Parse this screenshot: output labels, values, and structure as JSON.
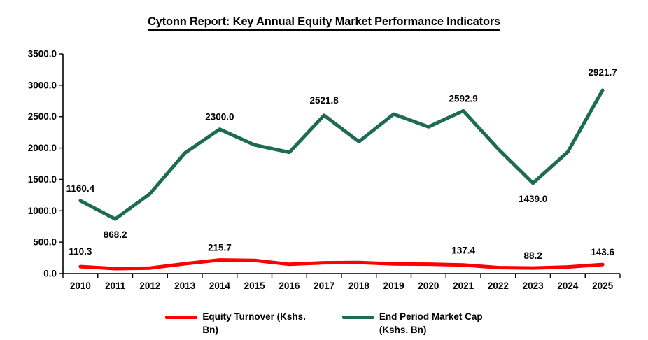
{
  "chart_data": {
    "type": "line",
    "title": "Cytonn Report: Key Annual Equity Market Performance  Indicators",
    "categories": [
      "2010",
      "2011",
      "2012",
      "2013",
      "2014",
      "2015",
      "2016",
      "2017",
      "2018",
      "2019",
      "2020",
      "2021",
      "2022",
      "2023",
      "2024",
      "2025"
    ],
    "series": [
      {
        "name": "Equity Turnover (Kshs. Bn)",
        "color": "#FF0000",
        "values": [
          110.3,
          78.1,
          86.8,
          155.8,
          215.7,
          209.4,
          147.2,
          171.6,
          175.7,
          153.9,
          148.9,
          137.4,
          94.2,
          88.2,
          105.0,
          143.6
        ]
      },
      {
        "name": "End Period Market Cap (Kshs. Bn)",
        "color": "#1C6B52",
        "values": [
          1160.4,
          868.2,
          1272.0,
          1920.7,
          2300.0,
          2049.5,
          1931.6,
          2521.8,
          2102.0,
          2540.0,
          2337.0,
          2592.9,
          1986.0,
          1439.0,
          1939.7,
          2921.7
        ]
      }
    ],
    "ylim": [
      0,
      3500
    ],
    "y_tick_step": 500,
    "y_tick_labels": [
      "0.0",
      "500.0",
      "1000.0",
      "1500.0",
      "2000.0",
      "2500.0",
      "3000.0",
      "3500.0"
    ],
    "xlabel": "",
    "ylabel": "",
    "grid": "off",
    "legend_position": "bottom",
    "point_labels": [
      {
        "series": 1,
        "category": "2010",
        "text": "1160.4",
        "placement": "above"
      },
      {
        "series": 1,
        "category": "2011",
        "text": "868.2",
        "placement": "below"
      },
      {
        "series": 1,
        "category": "2014",
        "text": "2300.0",
        "placement": "above"
      },
      {
        "series": 1,
        "category": "2017",
        "text": "2521.8",
        "placement": "above",
        "dy": -17
      },
      {
        "series": 1,
        "category": "2021",
        "text": "2592.9",
        "placement": "above"
      },
      {
        "series": 1,
        "category": "2023",
        "text": "1439.0",
        "placement": "below"
      },
      {
        "series": 1,
        "category": "2025",
        "text": "2921.7",
        "placement": "above",
        "dy": -21
      },
      {
        "series": 0,
        "category": "2010",
        "text": "110.3",
        "placement": "above",
        "dy": -17
      },
      {
        "series": 0,
        "category": "2014",
        "text": "215.7",
        "placement": "above"
      },
      {
        "series": 0,
        "category": "2021",
        "text": "137.4",
        "placement": "above",
        "dy": -16
      },
      {
        "series": 0,
        "category": "2023",
        "text": "88.2",
        "placement": "above"
      },
      {
        "series": 0,
        "category": "2025",
        "text": "143.6",
        "placement": "above"
      }
    ]
  },
  "legend": {
    "items": [
      {
        "line1": "Equity Turnover (Kshs.",
        "line2": "Bn)",
        "color": "#FF0000"
      },
      {
        "line1": "End Period Market Cap",
        "line2": "(Kshs. Bn)",
        "color": "#1C6B52"
      }
    ]
  }
}
